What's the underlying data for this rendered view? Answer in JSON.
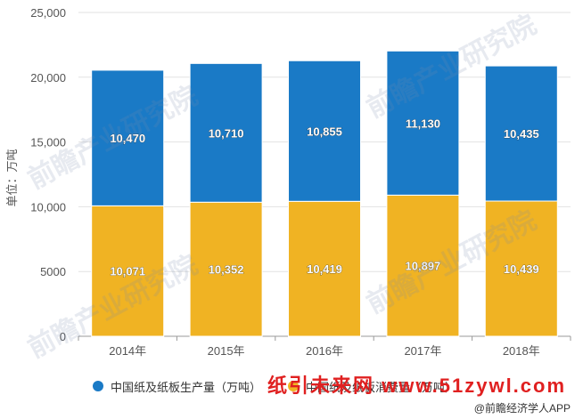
{
  "chart_data": {
    "type": "bar",
    "stacked": true,
    "categories": [
      "2014年",
      "2015年",
      "2016年",
      "2017年",
      "2018年"
    ],
    "series": [
      {
        "name": "中国纸及纸板消费量（万吨）",
        "color": "#f0b323",
        "values": [
          10071,
          10352,
          10419,
          10897,
          10439
        ],
        "labels": [
          "10,071",
          "10,352",
          "10,419",
          "10,897",
          "10,439"
        ]
      },
      {
        "name": "中国纸及纸板生产量（万吨）",
        "color": "#1a7ac6",
        "values": [
          10470,
          10710,
          10855,
          11130,
          10435
        ],
        "labels": [
          "10,470",
          "10,710",
          "10,855",
          "11,130",
          "10,435"
        ]
      }
    ],
    "ylabel": "单位：万吨",
    "ylim": [
      0,
      25000
    ],
    "yticks": [
      0,
      5000,
      10000,
      15000,
      20000,
      25000
    ],
    "ytick_labels": [
      "0",
      "5000",
      "10,000",
      "15,000",
      "20,000",
      "25,000"
    ],
    "grid": true,
    "legend_position": "bottom"
  },
  "legend": {
    "production": "中国纸及纸板生产量（万吨）",
    "consumption": "中国纸及纸板消费量（万吨）"
  },
  "watermarks": {
    "site": "纸引未来网 www.51zywl.com",
    "source": "@前瞻经济学人APP",
    "logo": "前瞻产业研究院"
  }
}
